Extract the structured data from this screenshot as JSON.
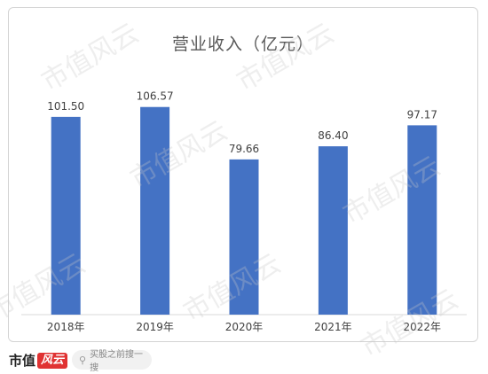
{
  "chart_data": {
    "type": "bar",
    "title": "营业收入（亿元）",
    "categories": [
      "2018年",
      "2019年",
      "2020年",
      "2021年",
      "2022年"
    ],
    "values": [
      101.5,
      106.57,
      79.66,
      86.4,
      97.17
    ],
    "value_labels": [
      "101.50",
      "106.57",
      "79.66",
      "86.40",
      "97.17"
    ],
    "ylim": [
      0,
      116
    ],
    "grid": false,
    "legend": "none",
    "bar_color": "#4472c4"
  },
  "watermark": "市值风云",
  "footer": {
    "brand_text": "市值",
    "brand_mark": "风云",
    "search_placeholder": "买股之前搜一搜",
    "search_icon": "search-icon"
  }
}
